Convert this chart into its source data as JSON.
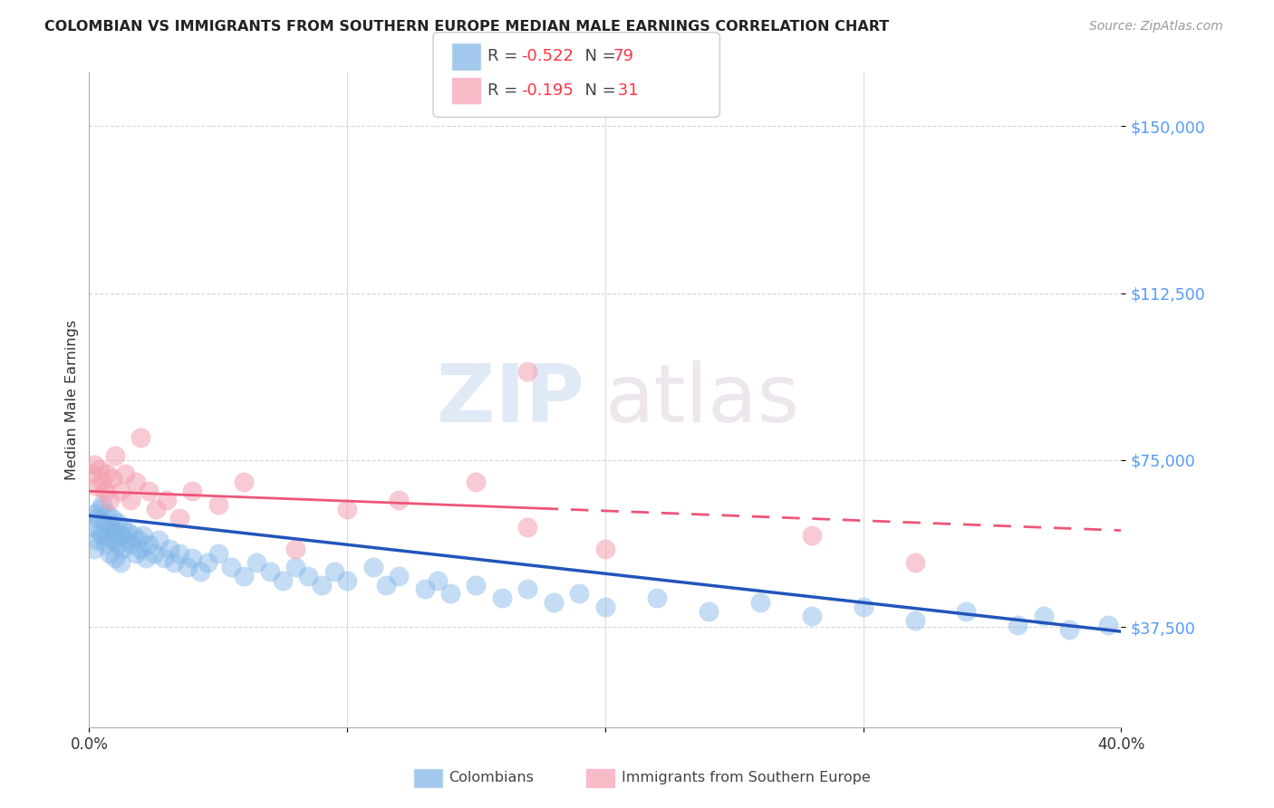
{
  "title": "COLOMBIAN VS IMMIGRANTS FROM SOUTHERN EUROPE MEDIAN MALE EARNINGS CORRELATION CHART",
  "source": "Source: ZipAtlas.com",
  "ylabel": "Median Male Earnings",
  "ytick_labels": [
    "$37,500",
    "$75,000",
    "$112,500",
    "$150,000"
  ],
  "ytick_values": [
    37500,
    75000,
    112500,
    150000
  ],
  "ymin": 15000,
  "ymax": 162000,
  "xmin": 0.0,
  "xmax": 0.4,
  "watermark_zip": "ZIP",
  "watermark_atlas": "atlas",
  "blue_color": "#7EB3E8",
  "pink_color": "#F4A0B0",
  "blue_line_color": "#2255BB",
  "pink_line_color": "#EE5577",
  "blue_series_label": "Colombians",
  "pink_series_label": "Immigrants from Southern Europe",
  "blue_intercept": 62500,
  "blue_slope": -65000,
  "pink_intercept": 68000,
  "pink_slope": -22000,
  "blue_x": [
    0.001,
    0.002,
    0.002,
    0.003,
    0.003,
    0.004,
    0.004,
    0.005,
    0.005,
    0.006,
    0.006,
    0.007,
    0.007,
    0.008,
    0.008,
    0.009,
    0.009,
    0.01,
    0.01,
    0.011,
    0.011,
    0.012,
    0.012,
    0.013,
    0.013,
    0.014,
    0.015,
    0.016,
    0.017,
    0.018,
    0.019,
    0.02,
    0.021,
    0.022,
    0.023,
    0.025,
    0.027,
    0.029,
    0.031,
    0.033,
    0.035,
    0.038,
    0.04,
    0.043,
    0.046,
    0.05,
    0.055,
    0.06,
    0.065,
    0.07,
    0.075,
    0.08,
    0.085,
    0.09,
    0.095,
    0.1,
    0.11,
    0.115,
    0.12,
    0.13,
    0.135,
    0.14,
    0.15,
    0.16,
    0.17,
    0.18,
    0.19,
    0.2,
    0.22,
    0.24,
    0.26,
    0.28,
    0.3,
    0.32,
    0.34,
    0.36,
    0.37,
    0.38,
    0.395
  ],
  "blue_y": [
    60000,
    63000,
    55000,
    62000,
    57000,
    64000,
    59000,
    58000,
    65000,
    61000,
    56000,
    63000,
    58000,
    60000,
    54000,
    62000,
    57000,
    59000,
    53000,
    61000,
    56000,
    58000,
    52000,
    60000,
    55000,
    57000,
    59000,
    56000,
    58000,
    54000,
    57000,
    55000,
    58000,
    53000,
    56000,
    54000,
    57000,
    53000,
    55000,
    52000,
    54000,
    51000,
    53000,
    50000,
    52000,
    54000,
    51000,
    49000,
    52000,
    50000,
    48000,
    51000,
    49000,
    47000,
    50000,
    48000,
    51000,
    47000,
    49000,
    46000,
    48000,
    45000,
    47000,
    44000,
    46000,
    43000,
    45000,
    42000,
    44000,
    41000,
    43000,
    40000,
    42000,
    39000,
    41000,
    38000,
    40000,
    37000,
    38000
  ],
  "pink_x": [
    0.001,
    0.002,
    0.003,
    0.004,
    0.005,
    0.006,
    0.007,
    0.008,
    0.009,
    0.01,
    0.012,
    0.014,
    0.016,
    0.018,
    0.02,
    0.023,
    0.026,
    0.03,
    0.035,
    0.04,
    0.05,
    0.06,
    0.08,
    0.1,
    0.12,
    0.15,
    0.17,
    0.2,
    0.28,
    0.32,
    0.17
  ],
  "pink_y": [
    72000,
    74000,
    69000,
    73000,
    70000,
    68000,
    72000,
    66000,
    71000,
    76000,
    68000,
    72000,
    66000,
    70000,
    80000,
    68000,
    64000,
    66000,
    62000,
    68000,
    65000,
    70000,
    55000,
    64000,
    66000,
    70000,
    60000,
    55000,
    58000,
    52000,
    95000
  ]
}
